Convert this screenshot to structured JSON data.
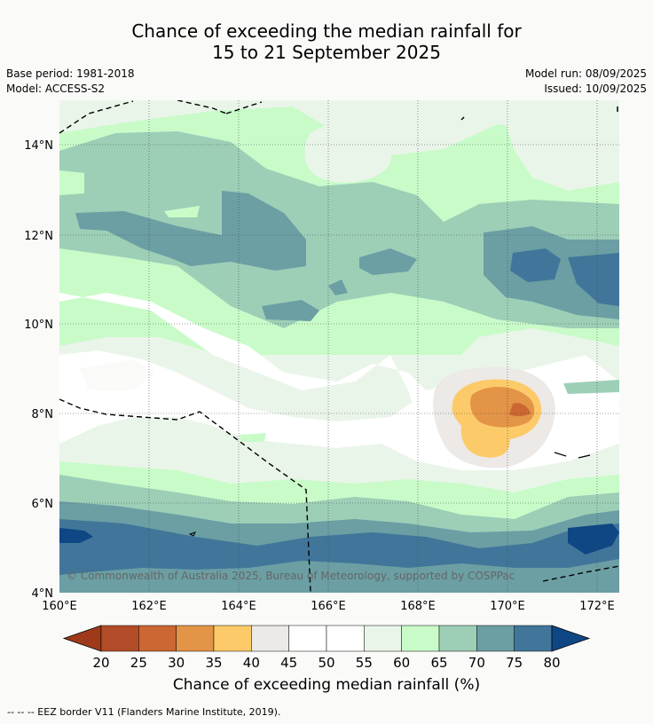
{
  "title_line1": "Chance of exceeding the median rainfall for",
  "title_line2": "15 to 21 September 2025",
  "base_period": "Base period: 1981-2018",
  "model": "Model: ACCESS-S2",
  "model_run": "Model run: 08/09/2025",
  "issued": "Issued: 10/09/2025",
  "credit": "© Commonwealth of Australia 2025, Bureau of Meteorology, supported by COSPPac",
  "lat_ticks": [
    "14°N",
    "12°N",
    "10°N",
    "8°N",
    "6°N",
    "4°N"
  ],
  "lon_ticks": [
    "160°E",
    "162°E",
    "164°E",
    "166°E",
    "168°E",
    "170°E",
    "172°E"
  ],
  "colorbar": {
    "title": "Chance of exceeding median rainfall (%)",
    "ticks": [
      "20",
      "25",
      "30",
      "35",
      "40",
      "45",
      "50",
      "55",
      "60",
      "65",
      "70",
      "75",
      "80"
    ],
    "colors": [
      "#9e3a1a",
      "#b34c28",
      "#cc6633",
      "#e39447",
      "#fdca69",
      "#ece9e6",
      "#ffffff",
      "#ffffff",
      "#eaf5ea",
      "#c9fbc9",
      "#9dcfb7",
      "#6b9fa4",
      "#41769a",
      "#0f4784"
    ]
  },
  "footer": "--  --  -- EEZ border V11 (Flanders Marine Institute, 2019)."
}
